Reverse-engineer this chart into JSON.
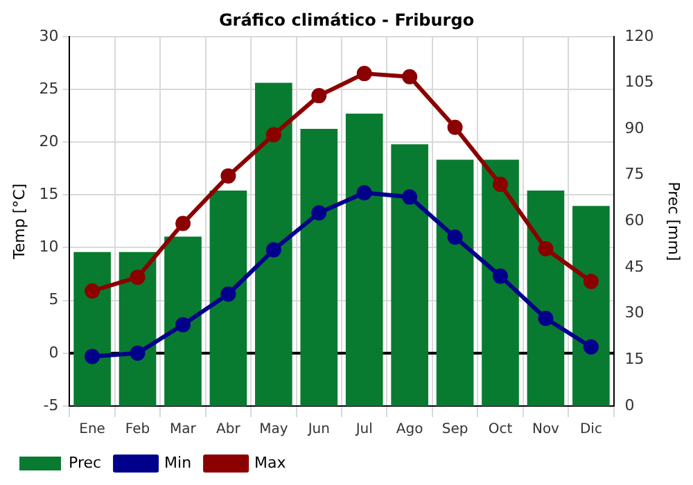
{
  "chart_data": {
    "type": "bar",
    "title": "Gráfico climático - Friburgo",
    "ylabel": "Temp [°C]",
    "y2label": "Prec [mm]",
    "categories": [
      "Ene",
      "Feb",
      "Mar",
      "Abr",
      "May",
      "Jun",
      "Jul",
      "Ago",
      "Sep",
      "Oct",
      "Nov",
      "Dic"
    ],
    "series": [
      {
        "name": "Prec",
        "axis": "y2",
        "color": "#087b30",
        "values": [
          50,
          50,
          55,
          70,
          105,
          90,
          95,
          85,
          80,
          80,
          70,
          65
        ]
      },
      {
        "name": "Min",
        "type": "line",
        "axis": "y",
        "color": "#00008b",
        "values": [
          -0.3,
          0,
          2.7,
          5.6,
          9.8,
          13.3,
          15.2,
          14.8,
          11,
          7.3,
          3.3,
          0.6
        ]
      },
      {
        "name": "Max",
        "type": "line",
        "axis": "y",
        "color": "#8b0000",
        "values": [
          5.9,
          7.2,
          12.3,
          16.8,
          20.7,
          24.4,
          26.5,
          26.2,
          21.4,
          16,
          9.9,
          6.8
        ]
      }
    ],
    "ylim": [
      -5,
      30
    ],
    "yticks": [
      -5,
      0,
      5,
      10,
      15,
      20,
      25,
      30
    ],
    "y2lim": [
      0,
      120
    ],
    "y2ticks": [
      0,
      15,
      30,
      45,
      60,
      75,
      90,
      105,
      120
    ],
    "ref_lines": [
      {
        "axis": "y",
        "value": 0,
        "color": "#000000"
      }
    ],
    "grid": true,
    "legend": "bottom",
    "marker": "circle"
  }
}
